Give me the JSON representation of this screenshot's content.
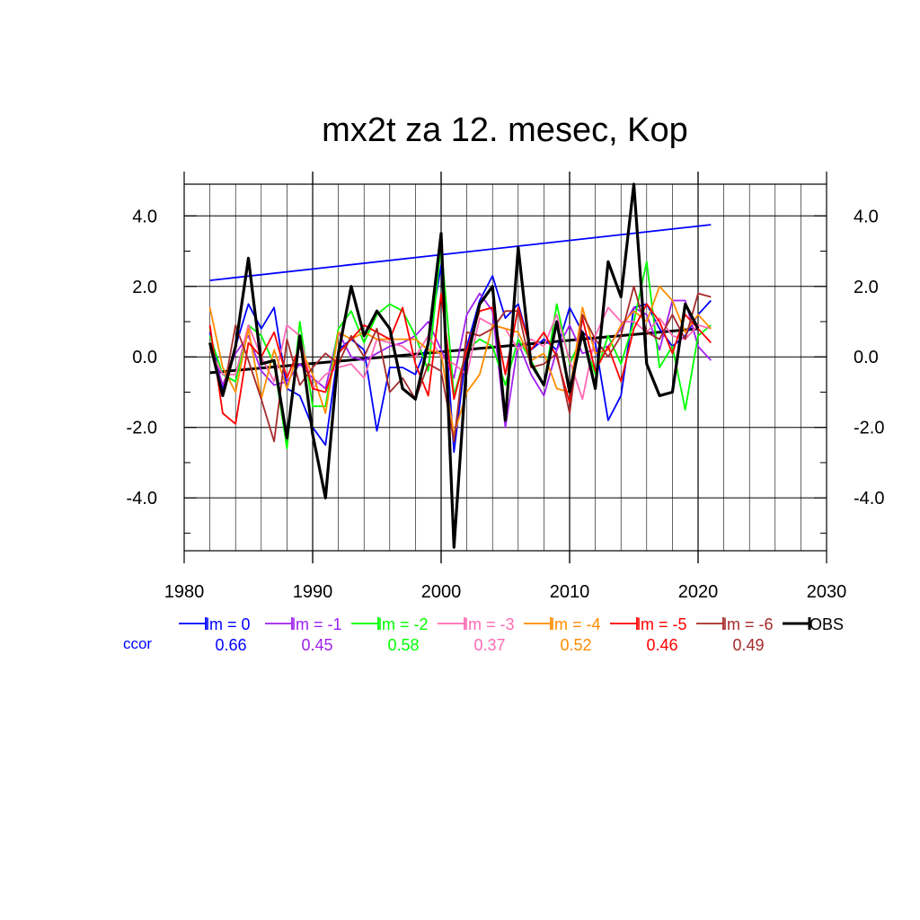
{
  "chart_data": {
    "type": "line",
    "title": "mx2t za 12. mesec, Kop",
    "xlabel": "",
    "ylabel": "",
    "xlim": [
      1980,
      2030
    ],
    "ylim": [
      -5.5,
      4.9
    ],
    "xticks": [
      1980,
      1990,
      2000,
      2010,
      2020,
      2030
    ],
    "xtick_labels": [
      "1980",
      "1990",
      "2000",
      "2010",
      "2020",
      "2030"
    ],
    "yticks": [
      -4.0,
      -2.0,
      0.0,
      2.0,
      4.0
    ],
    "ytick_labels": [
      "-4.0",
      "-2.0",
      "0.0",
      "2.0",
      "4.0"
    ],
    "grid": true,
    "legend_position": "below",
    "ccor_label": "ccor",
    "x": [
      1982,
      1983,
      1984,
      1985,
      1986,
      1987,
      1988,
      1989,
      1990,
      1991,
      1992,
      1993,
      1994,
      1995,
      1996,
      1997,
      1998,
      1999,
      2000,
      2001,
      2002,
      2003,
      2004,
      2005,
      2006,
      2007,
      2008,
      2009,
      2010,
      2011,
      2012,
      2013,
      2014,
      2015,
      2016,
      2017,
      2018,
      2019,
      2020,
      2021
    ],
    "series": [
      {
        "name": "lm = 0",
        "ccor": "0.66",
        "color": "#0000ff",
        "values": [
          0.7,
          -0.9,
          0.3,
          1.5,
          0.8,
          1.4,
          -0.9,
          -1.1,
          -2.0,
          -2.5,
          0.2,
          0.5,
          0.2,
          -2.1,
          -0.3,
          -0.3,
          -0.5,
          0.4,
          2.6,
          -2.7,
          0.3,
          1.6,
          2.3,
          1.1,
          1.5,
          0.2,
          0.5,
          0.2,
          1.4,
          0.7,
          0.4,
          -1.8,
          -1.1,
          1.4,
          1.5,
          0.8,
          0.3,
          0.6,
          1.2,
          1.6
        ]
      },
      {
        "name": "lm = -1",
        "ccor": "0.45",
        "color": "#a020f0",
        "values": [
          0.4,
          -0.8,
          0.1,
          0.6,
          -0.4,
          -0.8,
          -0.7,
          -0.2,
          -0.6,
          -0.9,
          0.7,
          0.0,
          -0.1,
          0.1,
          0.3,
          0.4,
          0.6,
          1.0,
          0.2,
          -0.6,
          1.2,
          1.8,
          1.3,
          -2.0,
          0.4,
          -0.5,
          -1.1,
          0.2,
          0.9,
          0.1,
          0.2,
          0.3,
          0.8,
          1.4,
          1.2,
          0.2,
          1.6,
          1.6,
          0.3,
          -0.1
        ]
      },
      {
        "name": "lm = -2",
        "ccor": "0.58",
        "color": "#00ff00",
        "values": [
          0.6,
          -0.5,
          -0.7,
          0.9,
          0.6,
          -0.2,
          -2.6,
          1.0,
          -1.4,
          -1.4,
          0.8,
          1.3,
          0.4,
          1.2,
          1.5,
          1.3,
          0.6,
          -0.4,
          3.2,
          -1.1,
          0.2,
          0.5,
          0.3,
          -0.8,
          0.5,
          -0.1,
          -0.8,
          1.5,
          -0.2,
          0.6,
          -0.5,
          0.6,
          -0.2,
          1.0,
          2.7,
          -0.3,
          0.3,
          -1.5,
          0.6,
          0.9
        ]
      },
      {
        "name": "lm = -3",
        "ccor": "0.37",
        "color": "#ff69b4",
        "values": [
          0.2,
          -0.5,
          -0.5,
          0.9,
          0.0,
          -0.7,
          0.9,
          0.6,
          -0.9,
          -0.5,
          -0.3,
          -0.2,
          -0.6,
          0.5,
          0.4,
          0.3,
          0.0,
          0.6,
          0.0,
          -0.2,
          -0.5,
          1.1,
          0.9,
          0.8,
          0.2,
          0.5,
          0.3,
          1.2,
          -0.1,
          -1.2,
          0.6,
          1.4,
          1.0,
          1.0,
          0.7,
          1.1,
          0.6,
          0.5,
          0.9,
          0.8
        ]
      },
      {
        "name": "lm = -4",
        "ccor": "0.52",
        "color": "#ff8c00",
        "values": [
          1.4,
          -0.3,
          -1.0,
          0.8,
          -1.2,
          0.2,
          -0.9,
          0.3,
          -0.5,
          -1.6,
          0.7,
          0.5,
          0.7,
          0.5,
          0.5,
          0.5,
          0.5,
          0.2,
          0.1,
          -2.2,
          -1.0,
          -0.5,
          0.9,
          0.8,
          0.7,
          -0.1,
          0.1,
          -0.9,
          -1.0,
          1.4,
          0.1,
          0.2,
          0.9,
          1.3,
          1.0,
          2.0,
          1.6,
          0.7,
          1.2,
          0.8
        ]
      },
      {
        "name": "lm = -5",
        "ccor": "0.46",
        "color": "#ff0000",
        "values": [
          0.9,
          -1.6,
          -1.9,
          0.4,
          0.0,
          0.7,
          -0.6,
          0.3,
          -0.9,
          -1.0,
          0.1,
          0.5,
          0.9,
          0.7,
          0.5,
          1.4,
          -0.2,
          -1.1,
          1.8,
          -1.2,
          0.2,
          1.3,
          1.4,
          -0.5,
          1.4,
          0.2,
          0.7,
          0.0,
          -1.3,
          1.1,
          -0.4,
          0.3,
          -0.7,
          0.8,
          1.5,
          1.0,
          0.1,
          1.2,
          0.8,
          0.4
        ]
      },
      {
        "name": "lm = -6",
        "ccor": "0.49",
        "color": "#a52a2a",
        "values": [
          0.4,
          -1.1,
          0.9,
          -0.1,
          -1.2,
          -2.4,
          0.5,
          -0.8,
          -0.3,
          0.1,
          -0.2,
          0.6,
          0.0,
          0.8,
          -1.0,
          -0.6,
          -1.2,
          -0.2,
          -0.4,
          -2.4,
          0.7,
          0.6,
          0.8,
          1.3,
          1.3,
          -0.3,
          -0.2,
          0.1,
          -1.6,
          1.2,
          0.5,
          0.0,
          0.6,
          2.0,
          0.7,
          0.5,
          1.2,
          0.5,
          1.8,
          1.7
        ]
      },
      {
        "name": "OBS",
        "ccor": "",
        "color": "#000000",
        "values": [
          0.4,
          -1.1,
          0.3,
          2.8,
          -0.2,
          -0.1,
          -2.3,
          0.6,
          -2.2,
          -4.0,
          0.1,
          2.0,
          0.6,
          1.3,
          0.8,
          -0.9,
          -1.2,
          0.4,
          3.5,
          -5.4,
          -0.1,
          1.5,
          2.0,
          -1.8,
          3.1,
          -0.2,
          -0.8,
          1.0,
          -1.0,
          0.7,
          -0.9,
          2.7,
          1.7,
          4.9,
          -0.2,
          -1.1,
          -1.0,
          1.5,
          0.8,
          null
        ]
      }
    ],
    "trend_lines": [
      {
        "color": "#0000ff",
        "x": [
          1982,
          2021
        ],
        "y": [
          2.17,
          3.75
        ]
      },
      {
        "color": "#000000",
        "x": [
          1982,
          2020
        ],
        "y": [
          -0.45,
          0.8
        ]
      }
    ]
  }
}
